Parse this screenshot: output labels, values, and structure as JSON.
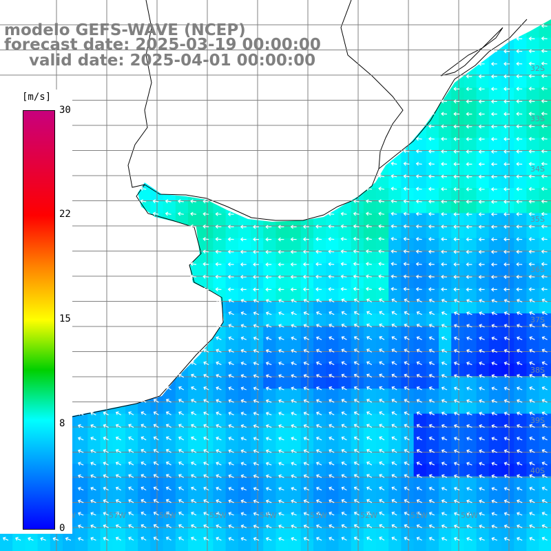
{
  "header": {
    "model_line": "modelo GEFS-WAVE (NCEP)",
    "forecast_line": "forecast date: 2025-03-19 00:00:00",
    "valid_line": "valid date: 2025-04-01 00:00:00"
  },
  "legend": {
    "unit": "[m/s]",
    "ticks": [
      "30",
      "22",
      "15",
      "8",
      "0"
    ],
    "scale_min": 0,
    "scale_max": 30,
    "colors": [
      "#0000ff",
      "#0080ff",
      "#00ffff",
      "#00d000",
      "#ffff00",
      "#ff8000",
      "#ff0000",
      "#c8007d"
    ]
  },
  "map": {
    "land_color": "#ffffff",
    "grid_color": "#808080",
    "coastline_color": "#000000",
    "arrow_color": "#ffffff",
    "latitude_labels": [
      "32S",
      "33S",
      "34S",
      "35S",
      "36S",
      "37S",
      "38S",
      "39S",
      "40S"
    ],
    "longitude_labels": [
      "58W",
      "57W",
      "56W",
      "55W",
      "54W",
      "53W",
      "52W",
      "51W",
      "50W"
    ],
    "wind_direction": "from east / southeast",
    "field_levels": [
      {
        "zone": "nearshore-north",
        "value_ms": 9
      },
      {
        "zone": "river-plate-band",
        "value_ms": 9
      },
      {
        "zone": "central-offshore",
        "value_ms": 4
      },
      {
        "zone": "east-offshore",
        "value_ms": 2
      },
      {
        "zone": "southern-sector",
        "value_ms": 6
      }
    ]
  }
}
